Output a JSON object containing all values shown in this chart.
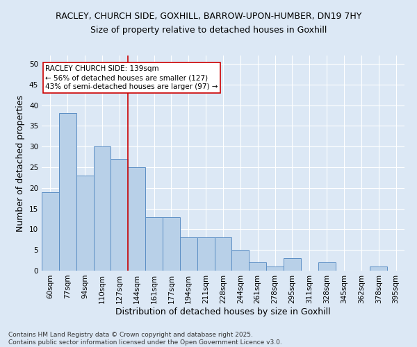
{
  "title1": "RACLEY, CHURCH SIDE, GOXHILL, BARROW-UPON-HUMBER, DN19 7HY",
  "title2": "Size of property relative to detached houses in Goxhill",
  "xlabel": "Distribution of detached houses by size in Goxhill",
  "ylabel": "Number of detached properties",
  "categories": [
    "60sqm",
    "77sqm",
    "94sqm",
    "110sqm",
    "127sqm",
    "144sqm",
    "161sqm",
    "177sqm",
    "194sqm",
    "211sqm",
    "228sqm",
    "244sqm",
    "261sqm",
    "278sqm",
    "295sqm",
    "311sqm",
    "328sqm",
    "345sqm",
    "362sqm",
    "378sqm",
    "395sqm"
  ],
  "values": [
    19,
    38,
    23,
    30,
    27,
    25,
    13,
    13,
    8,
    8,
    8,
    5,
    2,
    1,
    3,
    0,
    2,
    0,
    0,
    1,
    0
  ],
  "bar_color": "#b8d0e8",
  "bar_edge_color": "#5b8ec4",
  "background_color": "#dce8f5",
  "grid_color": "#ffffff",
  "vline_color": "#cc0000",
  "annotation_line1": "RACLEY CHURCH SIDE: 139sqm",
  "annotation_line2": "← 56% of detached houses are smaller (127)",
  "annotation_line3": "43% of semi-detached houses are larger (97) →",
  "annotation_box_color": "#ffffff",
  "annotation_box_edge_color": "#cc0000",
  "footer": "Contains HM Land Registry data © Crown copyright and database right 2025.\nContains public sector information licensed under the Open Government Licence v3.0.",
  "ylim": [
    0,
    52
  ],
  "yticks": [
    0,
    5,
    10,
    15,
    20,
    25,
    30,
    35,
    40,
    45,
    50
  ],
  "title_fontsize": 9,
  "subtitle_fontsize": 9,
  "tick_fontsize": 7.5,
  "label_fontsize": 9,
  "annotation_fontsize": 7.5,
  "footer_fontsize": 6.5
}
